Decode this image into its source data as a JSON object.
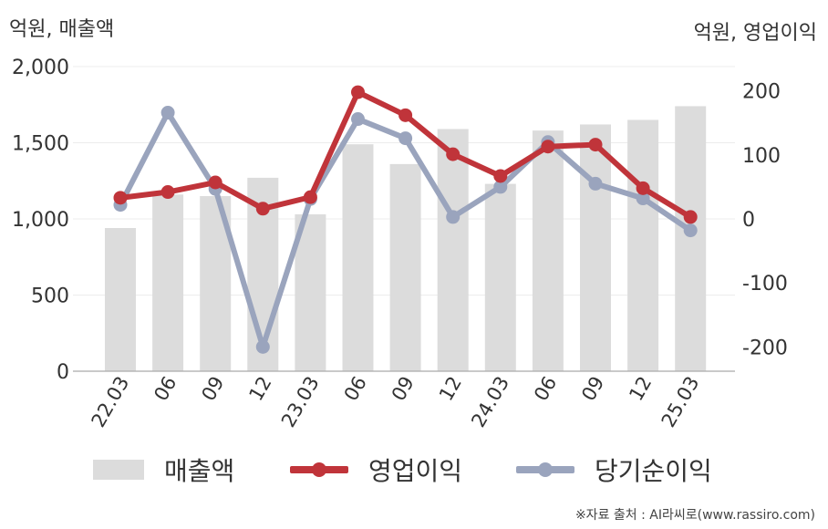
{
  "chart_data": {
    "type": "bar+line",
    "left_axis_label": "억원, 매출액",
    "right_axis_label": "억원, 영업이익",
    "categories": [
      "22.03",
      "06",
      "09",
      "12",
      "23.03",
      "06",
      "09",
      "12",
      "24.03",
      "06",
      "09",
      "12",
      "25.03"
    ],
    "left_axis": {
      "ylim": [
        0,
        2000
      ],
      "ticks": [
        0,
        500,
        1000,
        1500,
        2000
      ],
      "tick_labels": [
        "0",
        "500",
        "1,000",
        "1,500",
        "2,000"
      ]
    },
    "right_axis": {
      "ylim": [
        -238,
        238
      ],
      "ticks": [
        -200,
        -100,
        0,
        100,
        200
      ],
      "tick_labels": [
        "-200",
        "-100",
        "0",
        "100",
        "200"
      ]
    },
    "series": [
      {
        "name": "매출액",
        "type": "bar",
        "axis": "left",
        "color": "#dcdcdc",
        "values": [
          940,
          1160,
          1150,
          1270,
          1030,
          1490,
          1360,
          1590,
          1230,
          1580,
          1620,
          1650,
          1740
        ]
      },
      {
        "name": "영업이익",
        "type": "line",
        "axis": "right",
        "color": "#c0343a",
        "values": [
          33,
          42,
          57,
          16,
          34,
          198,
          162,
          101,
          67,
          113,
          116,
          48,
          3
        ]
      },
      {
        "name": "당기순이익",
        "type": "line",
        "axis": "right",
        "color": "#9aa4bd",
        "values": [
          22,
          166,
          47,
          -200,
          31,
          156,
          126,
          3,
          50,
          120,
          55,
          32,
          -18
        ]
      }
    ],
    "grid": true,
    "legend_position": "bottom"
  },
  "source": "※자료 출처 : AI라씨로(www.rassiro.com)"
}
